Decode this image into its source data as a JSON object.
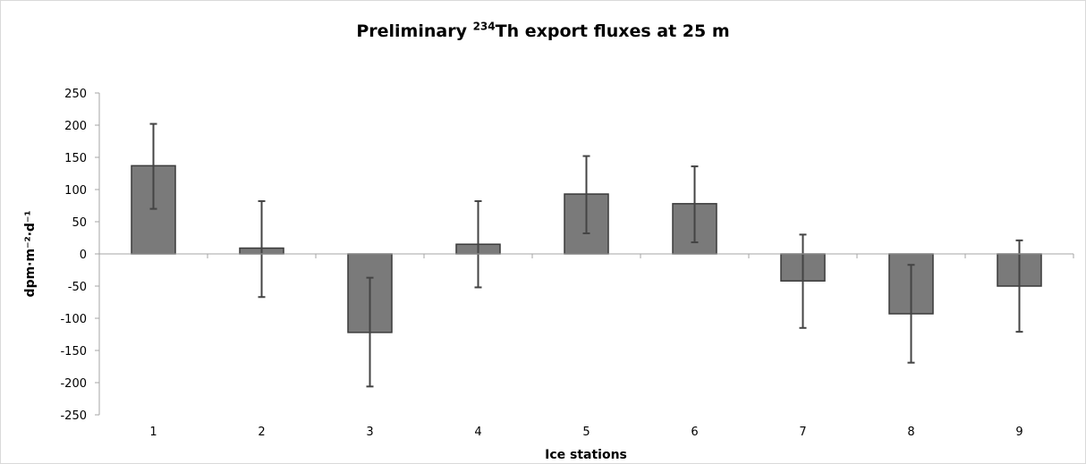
{
  "chart_data": {
    "type": "bar",
    "title": {
      "prefix": "Preliminary ",
      "superscript": "234",
      "suffix": "Th export fluxes at 25 m"
    },
    "xlabel": "Ice stations",
    "ylabel": "dpm·m⁻²·d⁻¹",
    "categories": [
      "1",
      "2",
      "3",
      "4",
      "5",
      "6",
      "7",
      "8",
      "9"
    ],
    "values": [
      137,
      9,
      -122,
      15,
      93,
      78,
      -42,
      -93,
      -50
    ],
    "error_upper": [
      202,
      82,
      -37,
      82,
      152,
      136,
      30,
      -17,
      21
    ],
    "error_lower": [
      70,
      -67,
      -206,
      -52,
      32,
      18,
      -115,
      -169,
      -121
    ],
    "ylim": [
      -250,
      250
    ],
    "yticks": [
      250,
      200,
      150,
      100,
      50,
      0,
      -50,
      -100,
      -150,
      -200,
      -250
    ],
    "grid": false,
    "legend": "none",
    "bar_color": "#7a7a7a",
    "bar_edge_color": "#3a3a3a",
    "error_color": "#444444",
    "axis_color": "#a6a6a6"
  }
}
